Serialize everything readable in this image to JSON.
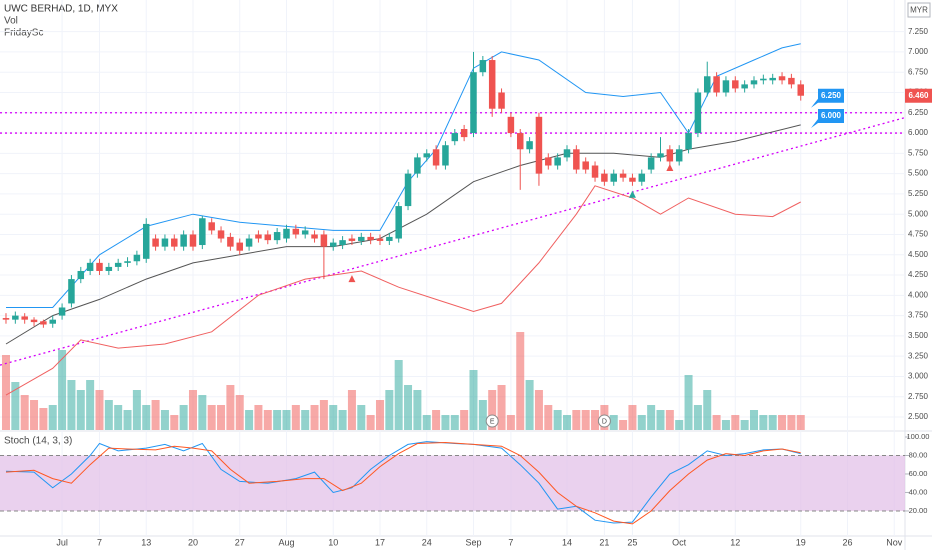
{
  "chart_data": [
    {
      "type": "candlestick",
      "title": "UWC BERHAD, 1D, MYX",
      "indicator_labels": [
        "Vol",
        "FridaySc"
      ],
      "currency": "MYR",
      "colors": {
        "up": "#26a69a",
        "down": "#ef5350"
      },
      "xlim": [
        -0.64,
        96.15
      ],
      "xticks": [
        {
          "value": 6,
          "label": "Jul"
        },
        {
          "value": 10,
          "label": "7"
        },
        {
          "value": 15,
          "label": "13"
        },
        {
          "value": 20,
          "label": "20"
        },
        {
          "value": 25,
          "label": "27"
        },
        {
          "value": 30,
          "label": "Aug"
        },
        {
          "value": 35,
          "label": "10"
        },
        {
          "value": 40,
          "label": "17"
        },
        {
          "value": 45,
          "label": "24"
        },
        {
          "value": 50,
          "label": "Sep"
        },
        {
          "value": 54,
          "label": "7"
        },
        {
          "value": 60,
          "label": "14"
        },
        {
          "value": 64,
          "label": "21"
        },
        {
          "value": 67,
          "label": "25"
        },
        {
          "value": 72,
          "label": "Oct"
        },
        {
          "value": 78,
          "label": "12"
        },
        {
          "value": 85,
          "label": "19"
        },
        {
          "value": 90,
          "label": "26"
        },
        {
          "value": 95,
          "label": "Nov"
        }
      ],
      "ylim": [
        2.34,
        7.64
      ],
      "yticks": [
        {
          "value": 2.5,
          "label": "2.500"
        },
        {
          "value": 2.75,
          "label": "2.750"
        },
        {
          "value": 3.0,
          "label": "3.000"
        },
        {
          "value": 3.25,
          "label": "3.250"
        },
        {
          "value": 3.5,
          "label": "3.500"
        },
        {
          "value": 3.75,
          "label": "3.750"
        },
        {
          "value": 4.0,
          "label": "4.000"
        },
        {
          "value": 4.25,
          "label": "4.250"
        },
        {
          "value": 4.5,
          "label": "4.500"
        },
        {
          "value": 4.75,
          "label": "4.750"
        },
        {
          "value": 5.0,
          "label": "5.000"
        },
        {
          "value": 5.25,
          "label": "5.250"
        },
        {
          "value": 5.5,
          "label": "5.500"
        },
        {
          "value": 5.75,
          "label": "5.750"
        },
        {
          "value": 6.0,
          "label": "6.000"
        },
        {
          "value": 6.25,
          "label": "6.250"
        },
        {
          "value": 6.5,
          "label": "6.500"
        },
        {
          "value": 6.75,
          "label": "6.750"
        },
        {
          "value": 7.0,
          "label": "7.000"
        },
        {
          "value": 7.25,
          "label": "7.250"
        }
      ],
      "grid": true,
      "open": [
        3.72,
        3.7,
        3.74,
        3.7,
        3.68,
        3.65,
        3.75,
        3.9,
        4.2,
        4.3,
        4.4,
        4.3,
        4.35,
        4.4,
        4.42,
        4.45,
        4.7,
        4.6,
        4.7,
        4.6,
        4.75,
        4.62,
        4.9,
        4.8,
        4.72,
        4.65,
        4.6,
        4.75,
        4.75,
        4.68,
        4.7,
        4.82,
        4.75,
        4.75,
        4.75,
        4.6,
        4.62,
        4.7,
        4.67,
        4.72,
        4.7,
        4.67,
        4.7,
        5.1,
        5.5,
        5.7,
        5.8,
        5.6,
        5.9,
        6.05,
        6.0,
        6.75,
        6.9,
        6.5,
        6.2,
        6.0,
        5.8,
        6.2,
        5.7,
        5.6,
        5.7,
        5.8,
        5.65,
        5.6,
        5.5,
        5.4,
        5.5,
        5.45,
        5.4,
        5.55,
        5.7,
        5.8,
        5.65,
        5.8,
        6.0,
        6.5,
        6.7,
        6.5,
        6.65,
        6.55,
        6.6,
        6.65,
        6.65,
        6.7,
        6.68,
        6.6
      ],
      "high": [
        3.78,
        3.8,
        3.78,
        3.73,
        3.7,
        3.75,
        3.9,
        4.25,
        4.35,
        4.45,
        4.45,
        4.4,
        4.45,
        4.47,
        4.55,
        4.95,
        4.75,
        4.75,
        4.75,
        4.8,
        4.8,
        4.98,
        4.95,
        4.85,
        4.77,
        4.7,
        4.75,
        4.8,
        4.8,
        4.83,
        4.87,
        4.87,
        4.85,
        4.8,
        4.8,
        4.7,
        4.73,
        4.75,
        4.77,
        4.77,
        4.75,
        4.77,
        5.15,
        5.55,
        5.75,
        5.8,
        5.85,
        5.9,
        6.05,
        6.1,
        7.0,
        6.95,
        6.95,
        6.55,
        6.25,
        6.05,
        5.95,
        6.25,
        5.75,
        5.75,
        5.85,
        5.85,
        5.7,
        5.65,
        5.55,
        5.55,
        5.55,
        5.5,
        5.55,
        5.75,
        5.95,
        5.85,
        5.85,
        6.05,
        6.55,
        6.88,
        6.75,
        6.7,
        6.7,
        6.65,
        6.7,
        6.72,
        6.73,
        6.75,
        6.73,
        6.65
      ],
      "low": [
        3.65,
        3.65,
        3.65,
        3.62,
        3.6,
        3.6,
        3.7,
        3.85,
        4.15,
        4.25,
        4.25,
        4.25,
        4.3,
        4.35,
        4.37,
        4.4,
        4.55,
        4.55,
        4.55,
        4.55,
        4.55,
        4.57,
        4.75,
        4.65,
        4.55,
        4.5,
        4.55,
        4.65,
        4.63,
        4.63,
        4.65,
        4.7,
        4.7,
        4.65,
        4.2,
        4.55,
        4.57,
        4.62,
        4.62,
        4.63,
        4.62,
        4.62,
        4.65,
        5.05,
        5.45,
        5.65,
        5.55,
        5.55,
        5.85,
        5.9,
        5.95,
        6.7,
        6.2,
        6.25,
        5.95,
        5.3,
        5.75,
        5.35,
        5.55,
        5.55,
        5.65,
        5.5,
        5.5,
        5.4,
        5.35,
        5.35,
        5.4,
        5.35,
        5.35,
        5.5,
        5.65,
        5.6,
        5.6,
        5.75,
        5.95,
        6.45,
        6.45,
        6.45,
        6.5,
        6.5,
        6.55,
        6.6,
        6.6,
        6.6,
        6.55,
        6.4
      ],
      "close": [
        3.7,
        3.75,
        3.7,
        3.67,
        3.64,
        3.7,
        3.85,
        4.2,
        4.3,
        4.4,
        4.3,
        4.35,
        4.4,
        4.42,
        4.5,
        4.88,
        4.6,
        4.7,
        4.6,
        4.75,
        4.6,
        4.95,
        4.8,
        4.7,
        4.6,
        4.55,
        4.7,
        4.7,
        4.68,
        4.78,
        4.82,
        4.75,
        4.8,
        4.7,
        4.6,
        4.65,
        4.68,
        4.67,
        4.72,
        4.68,
        4.67,
        4.72,
        5.1,
        5.5,
        5.7,
        5.75,
        5.6,
        5.85,
        6.0,
        5.95,
        6.75,
        6.9,
        6.3,
        6.3,
        6.0,
        5.8,
        5.9,
        5.5,
        5.6,
        5.7,
        5.8,
        5.55,
        5.55,
        5.45,
        5.4,
        5.5,
        5.45,
        5.4,
        5.5,
        5.7,
        5.75,
        5.65,
        5.8,
        6.0,
        6.5,
        6.7,
        6.5,
        6.65,
        6.55,
        6.6,
        6.65,
        6.67,
        6.68,
        6.65,
        6.6,
        6.46
      ],
      "volume": [
        75,
        48,
        35,
        30,
        22,
        25,
        80,
        50,
        40,
        50,
        40,
        30,
        25,
        20,
        40,
        25,
        30,
        20,
        15,
        25,
        40,
        35,
        25,
        25,
        45,
        35,
        20,
        25,
        20,
        20,
        20,
        25,
        20,
        25,
        30,
        25,
        20,
        40,
        25,
        15,
        30,
        40,
        70,
        45,
        40,
        15,
        20,
        15,
        15,
        20,
        60,
        30,
        40,
        45,
        15,
        98,
        50,
        40,
        25,
        20,
        15,
        20,
        20,
        20,
        25,
        15,
        10,
        25,
        15,
        25,
        20,
        20,
        10,
        55,
        25,
        40,
        15,
        10,
        15,
        10,
        20,
        15,
        15,
        15,
        15,
        15
      ],
      "lines": [
        {
          "color": "#2196f3",
          "x": [
            0,
            5,
            10,
            15,
            20,
            25,
            30,
            35,
            40,
            43,
            46,
            50,
            53,
            57,
            62,
            66,
            70,
            73,
            76,
            80,
            83,
            85
          ],
          "values": [
            3.85,
            3.85,
            4.5,
            4.85,
            5.0,
            4.9,
            4.85,
            4.8,
            4.8,
            5.4,
            5.8,
            6.8,
            7.0,
            6.9,
            6.5,
            6.45,
            6.5,
            6.0,
            6.7,
            6.9,
            7.05,
            7.1
          ]
        },
        {
          "color": "#555555",
          "x": [
            0,
            5,
            10,
            15,
            20,
            25,
            30,
            35,
            40,
            45,
            50,
            55,
            60,
            65,
            70,
            73,
            78,
            85
          ],
          "values": [
            3.4,
            3.75,
            3.95,
            4.2,
            4.4,
            4.5,
            4.6,
            4.6,
            4.7,
            5.0,
            5.4,
            5.6,
            5.75,
            5.75,
            5.7,
            5.8,
            5.9,
            6.1
          ]
        },
        {
          "color": "#f06060",
          "x": [
            0,
            5,
            8,
            12,
            17,
            22,
            27,
            32,
            38,
            42,
            46,
            50,
            53,
            57,
            61,
            63,
            67,
            70,
            73,
            78,
            82,
            85
          ],
          "values": [
            2.77,
            3.1,
            3.45,
            3.35,
            3.4,
            3.55,
            4.0,
            4.2,
            4.3,
            4.1,
            3.95,
            3.8,
            3.9,
            4.4,
            5.0,
            5.35,
            5.2,
            5.0,
            5.2,
            5.0,
            4.97,
            5.15
          ]
        }
      ],
      "trendline": {
        "color": "#d500f9",
        "x": [
          -0.64,
          96.15
        ],
        "values": [
          3.14,
          6.19
        ]
      },
      "levels": [
        {
          "value": 6.25,
          "label": "6.250"
        },
        {
          "value": 6.0,
          "label": "6.000"
        }
      ],
      "last_price": {
        "value": 6.46,
        "label": "6.460"
      },
      "signals": [
        {
          "x": 37,
          "value": 4.2,
          "color": "#ef5350"
        },
        {
          "x": 67,
          "value": 5.24,
          "color": "#26a69a"
        },
        {
          "x": 71,
          "value": 5.57,
          "color": "#ef5350"
        }
      ],
      "events": [
        {
          "x": 52,
          "label": "E"
        },
        {
          "x": 64,
          "label": "D"
        }
      ]
    },
    {
      "type": "line",
      "title": "Stoch (14, 3, 3)",
      "xlim": [
        -0.64,
        96.15
      ],
      "ylim": [
        -6,
        105.4
      ],
      "yticks": [
        {
          "value": 20,
          "label": "20.00"
        },
        {
          "value": 40,
          "label": "40.00"
        },
        {
          "value": 60,
          "label": "60.00"
        },
        {
          "value": 80,
          "label": "80.00"
        },
        {
          "value": 100,
          "label": "100.00"
        }
      ],
      "band": [
        20,
        80
      ],
      "series": [
        {
          "color": "#2196f3",
          "x": [
            0,
            3,
            5,
            7,
            9,
            10,
            12,
            15,
            17,
            19,
            21,
            23,
            25,
            28,
            31,
            33,
            35,
            37,
            39,
            41,
            43,
            45,
            48,
            50,
            53,
            55,
            57,
            59,
            61,
            63,
            65,
            67,
            69,
            71,
            73,
            75,
            77,
            79,
            81,
            83,
            85
          ],
          "values": [
            63,
            62,
            45,
            60,
            80,
            93,
            85,
            88,
            92,
            85,
            93,
            65,
            52,
            50,
            55,
            62,
            40,
            45,
            65,
            80,
            92,
            95,
            93,
            92,
            88,
            70,
            50,
            22,
            25,
            10,
            7,
            8,
            35,
            60,
            70,
            85,
            80,
            82,
            86,
            87,
            82
          ]
        },
        {
          "color": "#ff5722",
          "x": [
            0,
            3,
            5,
            7,
            9,
            11,
            13,
            16,
            18,
            20,
            22,
            24,
            26,
            29,
            32,
            34,
            36,
            38,
            40,
            42,
            44,
            47,
            50,
            53,
            55,
            57,
            59,
            61,
            63,
            65,
            67,
            69,
            71,
            73,
            75,
            77,
            79,
            81,
            83,
            85
          ],
          "values": [
            62,
            64,
            55,
            50,
            70,
            88,
            87,
            86,
            90,
            88,
            85,
            65,
            50,
            52,
            55,
            55,
            42,
            50,
            68,
            82,
            93,
            94,
            92,
            90,
            80,
            62,
            40,
            25,
            18,
            9,
            6,
            20,
            42,
            60,
            75,
            82,
            80,
            85,
            87,
            83
          ]
        }
      ]
    }
  ]
}
